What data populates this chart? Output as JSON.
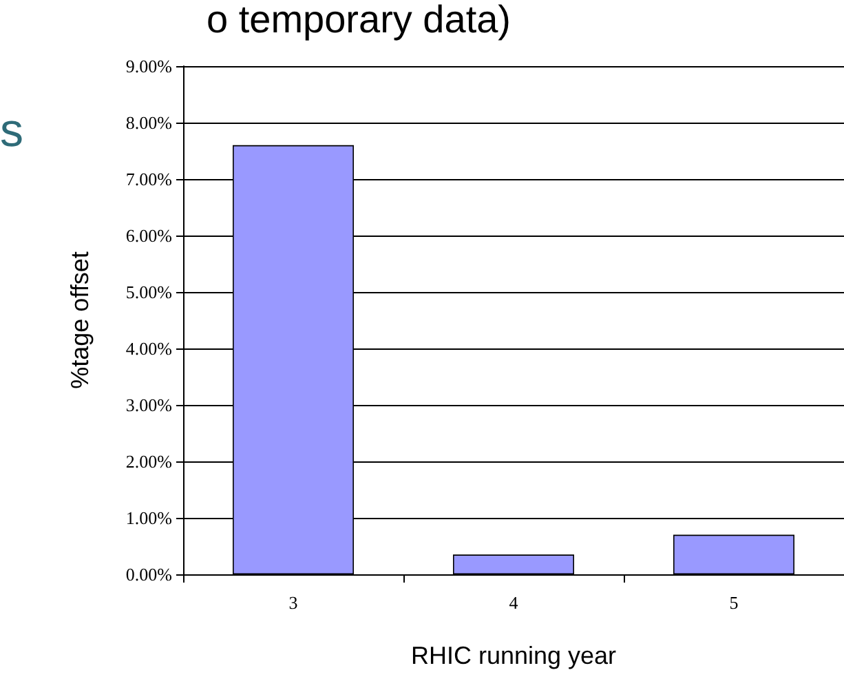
{
  "chart_data": {
    "type": "bar",
    "xlabel": "RHIC running year",
    "ylabel": "%tage offset",
    "annotations": [
      "o temporary data)",
      "s"
    ],
    "categories": [
      "3",
      "4",
      "5"
    ],
    "values": [
      7.6,
      0.35,
      0.7
    ],
    "color": "#9999ff",
    "ylim": [
      0,
      9
    ],
    "yticks": [
      {
        "value": 0,
        "label": "0.00%"
      },
      {
        "value": 1,
        "label": "1.00%"
      },
      {
        "value": 2,
        "label": "2.00%"
      },
      {
        "value": 3,
        "label": "3.00%"
      },
      {
        "value": 4,
        "label": "4.00%"
      },
      {
        "value": 5,
        "label": "5.00%"
      },
      {
        "value": 6,
        "label": "6.00%"
      },
      {
        "value": 7,
        "label": "7.00%"
      },
      {
        "value": 8,
        "label": "8.00%"
      },
      {
        "value": 9,
        "label": "9.00%"
      }
    ],
    "grid": "y"
  }
}
